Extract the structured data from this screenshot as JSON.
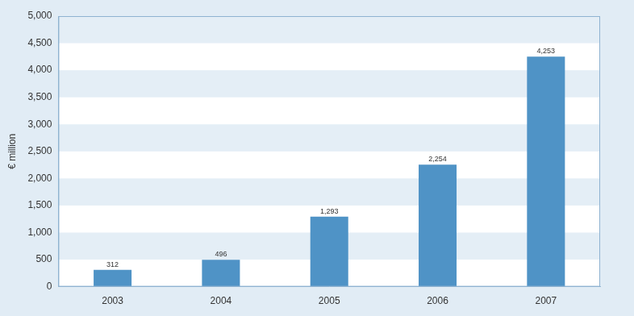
{
  "chart_data": {
    "type": "bar",
    "y_label": "€ million",
    "categories": [
      "2003",
      "2004",
      "2005",
      "2006",
      "2007"
    ],
    "values": [
      312,
      496,
      1293,
      2254,
      4253
    ],
    "value_labels": [
      "312",
      "496",
      "1,293",
      "2,254",
      "4,253"
    ],
    "data_labels": true,
    "color": "#4f93c6",
    "ylim": [
      0,
      5000
    ],
    "yticks": [
      0,
      500,
      {
        "value": 1000,
        "label": "1,000"
      },
      {
        "value": 1500,
        "label": "1,500"
      },
      {
        "value": 2000,
        "label": "2,000"
      },
      {
        "value": 2500,
        "label": "2,500"
      },
      {
        "value": 3000,
        "label": "3,000"
      },
      {
        "value": 3500,
        "label": "3,500"
      },
      {
        "value": 4000,
        "label": "4,000"
      },
      {
        "value": 4500,
        "label": "4,500"
      },
      {
        "value": 5000,
        "label": "5,000"
      }
    ],
    "grid": true
  }
}
